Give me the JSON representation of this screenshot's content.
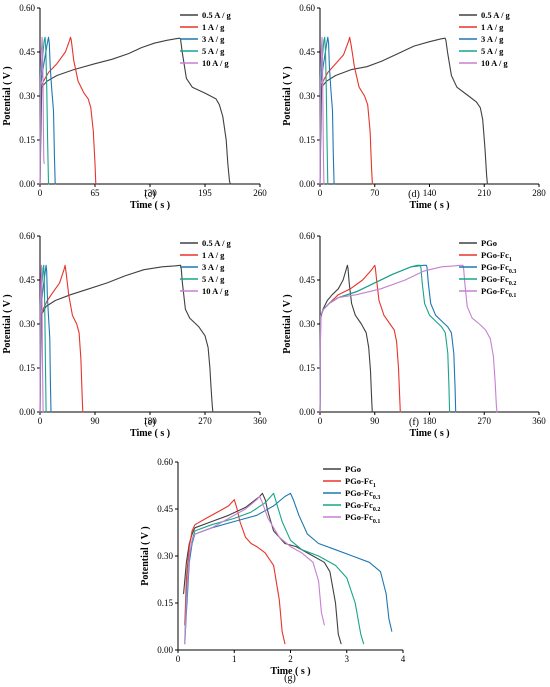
{
  "chart_data": [
    {
      "panel": "(c)",
      "type": "line",
      "ylabel": "Potential ( V )",
      "xlabel": "Time ( s )",
      "ylim": [
        0,
        0.6
      ],
      "yticks": [
        "0.00",
        "0.15",
        "0.30",
        "0.45",
        "0.60"
      ],
      "xlim": [
        0,
        260
      ],
      "xticks": [
        "0",
        "65",
        "130",
        "195",
        "260"
      ],
      "series": [
        {
          "name": "0.5 A / g",
          "color": "#404040",
          "x": [
            0,
            2,
            8,
            20,
            40,
            65,
            85,
            105,
            120,
            135,
            150,
            160,
            165,
            166,
            168,
            173,
            180,
            195,
            208,
            212,
            216,
            220,
            222,
            224,
            225
          ],
          "y": [
            0,
            0.33,
            0.35,
            0.37,
            0.39,
            0.41,
            0.425,
            0.445,
            0.465,
            0.48,
            0.49,
            0.495,
            0.497,
            0.495,
            0.45,
            0.36,
            0.33,
            0.31,
            0.29,
            0.27,
            0.23,
            0.15,
            0.07,
            0.01,
            0
          ]
        },
        {
          "name": "1 A / g",
          "color": "#e8332a",
          "x": [
            0,
            1,
            4,
            10,
            20,
            30,
            35,
            36,
            37,
            40,
            45,
            52,
            57,
            60,
            63,
            65,
            66
          ],
          "y": [
            0,
            0.33,
            0.35,
            0.38,
            0.41,
            0.45,
            0.49,
            0.5,
            0.49,
            0.42,
            0.35,
            0.31,
            0.29,
            0.26,
            0.18,
            0.07,
            0
          ]
        },
        {
          "name": "3 A / g",
          "color": "#1f77b4",
          "x": [
            0,
            1,
            4,
            8,
            10,
            11,
            12,
            14,
            16,
            17,
            18
          ],
          "y": [
            0,
            0.34,
            0.4,
            0.47,
            0.5,
            0.48,
            0.4,
            0.32,
            0.25,
            0.1,
            0
          ]
        },
        {
          "name": "5 A / g",
          "color": "#17a589",
          "x": [
            0,
            1,
            3,
            5,
            6,
            7,
            8,
            9,
            10
          ],
          "y": [
            0,
            0.35,
            0.43,
            0.49,
            0.5,
            0.45,
            0.32,
            0.15,
            0
          ]
        },
        {
          "name": "10 A / g",
          "color": "#c77fd2",
          "x": [
            0,
            0.5,
            1.5,
            2.5,
            3,
            3.5,
            4,
            4.5,
            5
          ],
          "y": [
            0,
            0.36,
            0.45,
            0.5,
            0.46,
            0.35,
            0.2,
            0.08,
            0.07
          ]
        }
      ]
    },
    {
      "panel": "(d)",
      "type": "line",
      "ylabel": "Potential ( V )",
      "xlabel": "Time ( s )",
      "ylim": [
        0,
        0.6
      ],
      "yticks": [
        "0.00",
        "0.15",
        "0.30",
        "0.45",
        "0.60"
      ],
      "xlim": [
        0,
        280
      ],
      "xticks": [
        "0",
        "70",
        "140",
        "210",
        "280"
      ],
      "series": [
        {
          "name": "0.5 A / g",
          "color": "#404040",
          "x": [
            0,
            2,
            8,
            20,
            40,
            60,
            80,
            100,
            120,
            140,
            155,
            160,
            161,
            163,
            168,
            175,
            190,
            200,
            205,
            208,
            211,
            213,
            214
          ],
          "y": [
            0,
            0.33,
            0.35,
            0.37,
            0.39,
            0.4,
            0.42,
            0.445,
            0.47,
            0.485,
            0.495,
            0.497,
            0.49,
            0.45,
            0.37,
            0.33,
            0.3,
            0.28,
            0.26,
            0.22,
            0.12,
            0.03,
            0
          ]
        },
        {
          "name": "1 A / g",
          "color": "#e8332a",
          "x": [
            0,
            1,
            4,
            10,
            20,
            30,
            37,
            38,
            40,
            44,
            50,
            57,
            61,
            64,
            66,
            67
          ],
          "y": [
            0,
            0.33,
            0.35,
            0.38,
            0.41,
            0.44,
            0.49,
            0.5,
            0.47,
            0.4,
            0.33,
            0.3,
            0.27,
            0.18,
            0.05,
            0
          ]
        },
        {
          "name": "3 A / g",
          "color": "#1f77b4",
          "x": [
            0,
            1,
            4,
            8,
            10,
            11,
            12,
            14,
            16,
            17,
            18
          ],
          "y": [
            0,
            0.34,
            0.4,
            0.47,
            0.5,
            0.48,
            0.4,
            0.32,
            0.25,
            0.1,
            0
          ]
        },
        {
          "name": "5 A / g",
          "color": "#17a589",
          "x": [
            0,
            1,
            3,
            5,
            6,
            7,
            8,
            9,
            10
          ],
          "y": [
            0,
            0.35,
            0.43,
            0.49,
            0.5,
            0.45,
            0.32,
            0.15,
            0
          ]
        },
        {
          "name": "10 A / g",
          "color": "#c77fd2",
          "x": [
            0,
            0.5,
            1.5,
            2.5,
            3,
            3.5,
            4,
            4.5,
            5
          ],
          "y": [
            0,
            0.36,
            0.45,
            0.5,
            0.46,
            0.35,
            0.2,
            0.08,
            0
          ]
        }
      ]
    },
    {
      "panel": "(e)",
      "type": "line",
      "ylabel": "Potential ( V )",
      "xlabel": "Time ( s )",
      "ylim": [
        0,
        0.6
      ],
      "yticks": [
        "0.00",
        "0.15",
        "0.30",
        "0.45",
        "0.60"
      ],
      "xlim": [
        0,
        360
      ],
      "xticks": [
        "0",
        "90",
        "180",
        "270",
        "360"
      ],
      "series": [
        {
          "name": "0.5 A / g",
          "color": "#404040",
          "x": [
            0,
            2,
            10,
            25,
            50,
            80,
            110,
            140,
            170,
            200,
            220,
            230,
            231,
            233,
            238,
            245,
            260,
            270,
            275,
            278,
            280,
            282,
            283
          ],
          "y": [
            0,
            0.33,
            0.36,
            0.38,
            0.4,
            0.42,
            0.44,
            0.465,
            0.485,
            0.495,
            0.498,
            0.5,
            0.49,
            0.44,
            0.35,
            0.32,
            0.29,
            0.26,
            0.22,
            0.15,
            0.08,
            0.02,
            0
          ]
        },
        {
          "name": "1 A / g",
          "color": "#e8332a",
          "x": [
            0,
            1,
            5,
            12,
            22,
            32,
            40,
            41,
            43,
            47,
            53,
            60,
            64,
            67,
            69,
            70
          ],
          "y": [
            0,
            0.33,
            0.35,
            0.38,
            0.41,
            0.44,
            0.49,
            0.5,
            0.47,
            0.4,
            0.33,
            0.3,
            0.27,
            0.18,
            0.05,
            0
          ]
        },
        {
          "name": "3 A / g",
          "color": "#1f77b4",
          "x": [
            0,
            1,
            4,
            8,
            10,
            11,
            12,
            14,
            16,
            17,
            18
          ],
          "y": [
            0,
            0.34,
            0.4,
            0.47,
            0.5,
            0.48,
            0.4,
            0.32,
            0.25,
            0.1,
            0
          ]
        },
        {
          "name": "5 A / g",
          "color": "#17a589",
          "x": [
            0,
            1,
            3,
            5,
            6,
            7,
            8,
            9,
            10
          ],
          "y": [
            0,
            0.35,
            0.43,
            0.49,
            0.5,
            0.45,
            0.32,
            0.15,
            0
          ]
        },
        {
          "name": "10 A / g",
          "color": "#c77fd2",
          "x": [
            0,
            0.5,
            1.5,
            2.5,
            3,
            3.5,
            4,
            4.5,
            5
          ],
          "y": [
            0,
            0.36,
            0.45,
            0.5,
            0.46,
            0.35,
            0.2,
            0.08,
            0
          ]
        }
      ]
    },
    {
      "panel": "(f)",
      "type": "line",
      "ylabel": "Potential ( V )",
      "xlabel": "Time ( s )",
      "ylim": [
        0,
        0.6
      ],
      "yticks": [
        "0.00",
        "0.15",
        "0.30",
        "0.45",
        "0.60"
      ],
      "xlim": [
        0,
        360
      ],
      "xticks": [
        "0",
        "90",
        "180",
        "270",
        "360"
      ],
      "series": [
        {
          "name": "PGo",
          "color": "#404040",
          "x": [
            0,
            1,
            5,
            12,
            20,
            30,
            38,
            45,
            46,
            48,
            52,
            58,
            68,
            76,
            80,
            83,
            85,
            86
          ],
          "y": [
            0,
            0.32,
            0.35,
            0.38,
            0.4,
            0.42,
            0.45,
            0.5,
            0.49,
            0.44,
            0.37,
            0.33,
            0.3,
            0.27,
            0.22,
            0.14,
            0.04,
            0
          ]
        },
        {
          "name": "PGo-Fc",
          "sub": "1",
          "color": "#e8332a",
          "x": [
            0,
            1,
            6,
            15,
            30,
            50,
            70,
            85,
            90,
            91,
            93,
            97,
            105,
            115,
            122,
            126,
            129,
            131,
            132
          ],
          "y": [
            0,
            0.33,
            0.35,
            0.37,
            0.4,
            0.42,
            0.45,
            0.485,
            0.5,
            0.49,
            0.45,
            0.38,
            0.33,
            0.3,
            0.28,
            0.24,
            0.15,
            0.05,
            0
          ]
        },
        {
          "name": "PGo-Fc",
          "sub": "0.3",
          "color": "#1f77b4",
          "x": [
            0,
            1,
            6,
            15,
            30,
            60,
            90,
            120,
            150,
            170,
            175,
            176,
            178,
            182,
            190,
            200,
            210,
            216,
            220,
            222,
            223
          ],
          "y": [
            0,
            0.33,
            0.35,
            0.37,
            0.39,
            0.41,
            0.44,
            0.47,
            0.495,
            0.5,
            0.5,
            0.49,
            0.44,
            0.37,
            0.33,
            0.31,
            0.29,
            0.27,
            0.2,
            0.08,
            0
          ]
        },
        {
          "name": "PGo-Fc",
          "sub": "0.2",
          "color": "#17a589",
          "x": [
            0,
            1,
            6,
            15,
            30,
            60,
            90,
            120,
            150,
            160,
            165,
            166,
            168,
            172,
            180,
            190,
            200,
            206,
            210,
            212,
            213
          ],
          "y": [
            0,
            0.33,
            0.35,
            0.37,
            0.39,
            0.41,
            0.44,
            0.47,
            0.495,
            0.5,
            0.5,
            0.49,
            0.44,
            0.37,
            0.33,
            0.31,
            0.29,
            0.27,
            0.2,
            0.08,
            0
          ]
        },
        {
          "name": "PGo-Fc",
          "sub": "0.1",
          "color": "#c77fd2",
          "x": [
            0,
            1,
            6,
            15,
            30,
            60,
            100,
            140,
            170,
            200,
            220,
            230,
            235,
            236,
            238,
            242,
            250,
            262,
            272,
            280,
            285,
            288,
            290,
            291
          ],
          "y": [
            0,
            0.33,
            0.35,
            0.37,
            0.39,
            0.4,
            0.42,
            0.45,
            0.48,
            0.495,
            0.498,
            0.5,
            0.5,
            0.49,
            0.44,
            0.36,
            0.32,
            0.3,
            0.28,
            0.25,
            0.19,
            0.1,
            0.02,
            0
          ]
        }
      ]
    },
    {
      "panel": "(g)",
      "type": "line",
      "ylabel": "Potential ( V )",
      "xlabel": "Time ( s )",
      "ylim": [
        0,
        0.6
      ],
      "yticks": [
        "0.00",
        "0.15",
        "0.30",
        "0.45",
        "0.60"
      ],
      "xlim": [
        0,
        4
      ],
      "xticks": [
        "0",
        "1",
        "2",
        "3",
        "4"
      ],
      "series": [
        {
          "name": "PGo",
          "color": "#404040",
          "x": [
            0.1,
            0.15,
            0.2,
            0.25,
            0.3,
            0.6,
            0.9,
            1.2,
            1.45,
            1.5,
            1.55,
            1.6,
            1.7,
            1.9,
            2.1,
            2.4,
            2.6,
            2.7,
            2.8,
            2.85,
            2.9
          ],
          "y": [
            0.18,
            0.28,
            0.34,
            0.37,
            0.39,
            0.41,
            0.43,
            0.455,
            0.49,
            0.5,
            0.48,
            0.44,
            0.38,
            0.34,
            0.33,
            0.3,
            0.28,
            0.25,
            0.15,
            0.05,
            0.02
          ]
        },
        {
          "name": "PGo-Fc",
          "sub": "1",
          "color": "#e8332a",
          "x": [
            0.12,
            0.15,
            0.2,
            0.25,
            0.3,
            0.5,
            0.7,
            0.9,
            1.0,
            1.05,
            1.1,
            1.2,
            1.3,
            1.4,
            1.55,
            1.7,
            1.8,
            1.85,
            1.9
          ],
          "y": [
            0.08,
            0.23,
            0.33,
            0.38,
            0.4,
            0.42,
            0.44,
            0.46,
            0.48,
            0.45,
            0.41,
            0.36,
            0.34,
            0.33,
            0.31,
            0.27,
            0.16,
            0.06,
            0.02
          ]
        },
        {
          "name": "PGo-Fc",
          "sub": "0.3",
          "color": "#1f77b4",
          "x": [
            0.12,
            0.15,
            0.2,
            0.25,
            0.3,
            0.6,
            1.0,
            1.4,
            1.7,
            1.9,
            2.0,
            2.05,
            2.15,
            2.3,
            2.5,
            2.8,
            3.1,
            3.4,
            3.6,
            3.7,
            3.75,
            3.8
          ],
          "y": [
            0.02,
            0.12,
            0.28,
            0.34,
            0.37,
            0.39,
            0.41,
            0.43,
            0.46,
            0.49,
            0.5,
            0.48,
            0.43,
            0.37,
            0.34,
            0.32,
            0.3,
            0.28,
            0.25,
            0.18,
            0.1,
            0.06
          ]
        },
        {
          "name": "PGo-Fc",
          "sub": "0.2",
          "color": "#17a589",
          "x": [
            0.12,
            0.15,
            0.2,
            0.25,
            0.3,
            0.6,
            1.0,
            1.3,
            1.55,
            1.65,
            1.7,
            1.75,
            1.85,
            2.0,
            2.2,
            2.5,
            2.8,
            3.0,
            3.15,
            3.25,
            3.3
          ],
          "y": [
            0.03,
            0.18,
            0.3,
            0.35,
            0.38,
            0.4,
            0.42,
            0.44,
            0.47,
            0.49,
            0.5,
            0.47,
            0.41,
            0.35,
            0.32,
            0.3,
            0.27,
            0.23,
            0.15,
            0.05,
            0.02
          ]
        },
        {
          "name": "PGo-Fc",
          "sub": "0.1",
          "color": "#c77fd2",
          "x": [
            0.12,
            0.15,
            0.2,
            0.25,
            0.3,
            0.6,
            0.9,
            1.2,
            1.4,
            1.45,
            1.5,
            1.6,
            1.8,
            2.0,
            2.2,
            2.4,
            2.5,
            2.55,
            2.6
          ],
          "y": [
            0.02,
            0.15,
            0.3,
            0.35,
            0.37,
            0.39,
            0.42,
            0.45,
            0.48,
            0.49,
            0.47,
            0.42,
            0.36,
            0.33,
            0.31,
            0.28,
            0.22,
            0.12,
            0.08
          ]
        }
      ]
    }
  ]
}
